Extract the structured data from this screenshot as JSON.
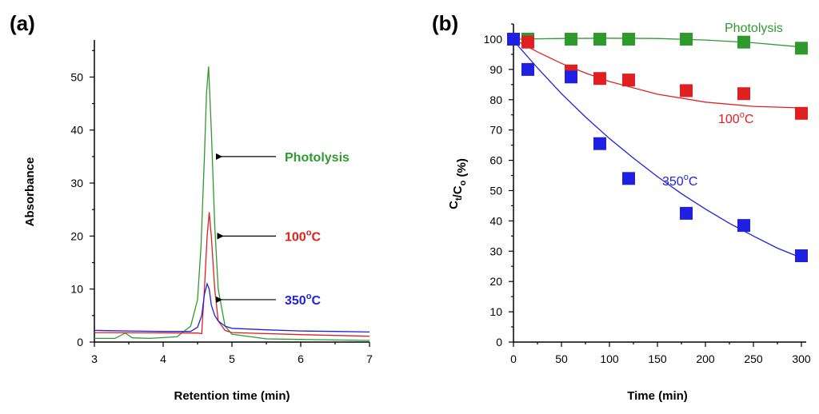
{
  "chart_data": [
    {
      "panel_label": "(a)",
      "type": "line",
      "xlabel": "Retention time (min)",
      "ylabel": "Absorbance",
      "xlim": [
        3,
        7
      ],
      "ylim": [
        0,
        57
      ],
      "xticks": [
        "3",
        "4",
        "5",
        "6",
        "7"
      ],
      "yticks": [
        "0",
        "10",
        "20",
        "30",
        "40",
        "50"
      ],
      "series": [
        {
          "name": "Photolysis",
          "color": "#2e9a2e",
          "x": [
            3.0,
            3.3,
            3.45,
            3.55,
            3.8,
            4.2,
            4.4,
            4.5,
            4.55,
            4.6,
            4.63,
            4.66,
            4.7,
            4.75,
            4.8,
            4.9,
            5.0,
            5.5,
            6.0,
            7.0
          ],
          "y": [
            0.7,
            0.7,
            1.7,
            0.8,
            0.7,
            1.0,
            3.0,
            8.0,
            18.0,
            35.0,
            47.0,
            52.0,
            40.0,
            22.0,
            10.0,
            3.0,
            1.5,
            0.6,
            0.5,
            0.3
          ]
        },
        {
          "name": "100°C",
          "color": "#e02020",
          "x": [
            3.0,
            4.5,
            4.56,
            4.6,
            4.64,
            4.67,
            4.7,
            4.75,
            4.8,
            4.9,
            5.0,
            6.0,
            7.0
          ],
          "y": [
            1.8,
            1.7,
            1.6,
            10.0,
            20.0,
            24.5,
            20.0,
            10.0,
            4.0,
            2.2,
            1.8,
            1.4,
            1.1
          ]
        },
        {
          "name": "350°C",
          "color": "#2020e0",
          "x": [
            3.0,
            3.5,
            4.0,
            4.4,
            4.5,
            4.56,
            4.6,
            4.64,
            4.67,
            4.7,
            4.75,
            4.8,
            4.9,
            5.0,
            5.5,
            6.0,
            6.5,
            7.0
          ],
          "y": [
            2.2,
            2.1,
            2.0,
            2.0,
            2.8,
            5.0,
            9.0,
            11.0,
            10.0,
            7.0,
            5.0,
            4.0,
            3.0,
            2.6,
            2.3,
            2.1,
            2.0,
            1.9
          ]
        }
      ],
      "annotations": [
        {
          "text": "Photolysis",
          "points_to": [
            4.68,
            35
          ],
          "color": "#2e9a2e"
        },
        {
          "text": "100°C",
          "points_to": [
            4.7,
            20
          ],
          "color": "#e02020"
        },
        {
          "text": "350°C",
          "points_to": [
            4.68,
            8
          ],
          "color": "#2020e0"
        }
      ]
    },
    {
      "panel_label": "(b)",
      "type": "scatter",
      "xlabel": "Time (min)",
      "ylabel": "Ct/Co (%)",
      "xlim": [
        0,
        305
      ],
      "ylim": [
        0,
        105
      ],
      "xticks": [
        "0",
        "50",
        "100",
        "150",
        "200",
        "250",
        "300"
      ],
      "yticks": [
        "0",
        "10",
        "20",
        "30",
        "40",
        "50",
        "60",
        "70",
        "80",
        "90",
        "100"
      ],
      "series": [
        {
          "name": "Photolysis",
          "color": "#2e9a2e",
          "x": [
            0,
            15,
            60,
            90,
            120,
            180,
            240,
            300
          ],
          "y": [
            100,
            100,
            100,
            100,
            100,
            100,
            99,
            97
          ],
          "fit": {
            "x": [
              0,
              50,
              100,
              150,
              200,
              250,
              300
            ],
            "y": [
              100,
              100.2,
              100.3,
              100.2,
              99.7,
              98.8,
              97.4
            ]
          }
        },
        {
          "name": "100°C",
          "color": "#e02020",
          "x": [
            0,
            15,
            60,
            90,
            120,
            180,
            240,
            300
          ],
          "y": [
            100,
            99,
            89.5,
            87,
            86.5,
            83,
            82,
            75.5
          ],
          "fit": {
            "x": [
              0,
              25,
              50,
              75,
              100,
              150,
              200,
              250,
              300
            ],
            "y": [
              100,
              95.8,
              92.0,
              88.8,
              86.0,
              81.8,
              79.2,
              77.8,
              77.3
            ]
          }
        },
        {
          "name": "350°C",
          "color": "#2020e0",
          "x": [
            0,
            15,
            60,
            90,
            120,
            180,
            240,
            300
          ],
          "y": [
            100,
            90,
            87.5,
            65.5,
            54,
            42.5,
            38.5,
            28.5
          ],
          "fit": {
            "x": [
              0,
              25,
              50,
              75,
              100,
              125,
              150,
              175,
              200,
              225,
              250,
              275,
              300
            ],
            "y": [
              99.5,
              90.5,
              82,
              74.3,
              67.2,
              60.7,
              54.6,
              49.0,
              43.9,
              39.2,
              35.0,
              31.0,
              27.8
            ]
          }
        }
      ],
      "annotations": [
        {
          "text": "Photolysis",
          "color": "#2e9a2e"
        },
        {
          "text": "100°C",
          "color": "#e02020"
        },
        {
          "text": "350°C",
          "color": "#2020e0"
        }
      ]
    }
  ]
}
